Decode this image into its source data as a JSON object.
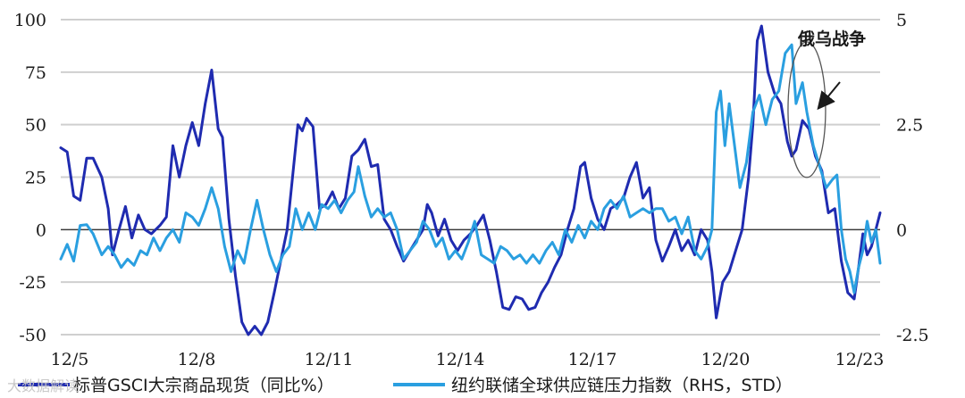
{
  "chart_data": {
    "type": "line",
    "title": "",
    "xlabel": "",
    "ylabel": "",
    "x_ticks": [
      "12/5",
      "12/8",
      "12/11",
      "12/14",
      "12/17",
      "12/20",
      "12/23"
    ],
    "x_range": [
      2005.0,
      2023.7
    ],
    "y_left": {
      "range": [
        -50,
        100
      ],
      "ticks": [
        100,
        75,
        50,
        25,
        0,
        -25,
        -50
      ]
    },
    "y_right": {
      "range": [
        -2.5,
        5
      ],
      "ticks": [
        "5",
        "2.5",
        "0",
        "-2.5"
      ]
    },
    "grid": true,
    "legend_position": "bottom",
    "series": [
      {
        "name": "标普GSCI大宗商品现货（同比%）",
        "axis": "left",
        "color": "#1f2bb0",
        "points": [
          [
            2005.0,
            39
          ],
          [
            2005.15,
            37
          ],
          [
            2005.3,
            16
          ],
          [
            2005.45,
            14
          ],
          [
            2005.6,
            34
          ],
          [
            2005.75,
            34
          ],
          [
            2005.95,
            25
          ],
          [
            2006.1,
            10
          ],
          [
            2006.2,
            -12
          ],
          [
            2006.35,
            0
          ],
          [
            2006.5,
            11
          ],
          [
            2006.65,
            -4
          ],
          [
            2006.8,
            7
          ],
          [
            2006.95,
            0
          ],
          [
            2007.1,
            -2
          ],
          [
            2007.3,
            2
          ],
          [
            2007.45,
            6
          ],
          [
            2007.6,
            40
          ],
          [
            2007.75,
            25
          ],
          [
            2007.9,
            40
          ],
          [
            2008.05,
            51
          ],
          [
            2008.2,
            40
          ],
          [
            2008.35,
            60
          ],
          [
            2008.5,
            76
          ],
          [
            2008.65,
            48
          ],
          [
            2008.75,
            44
          ],
          [
            2008.9,
            5
          ],
          [
            2009.05,
            -22
          ],
          [
            2009.2,
            -44
          ],
          [
            2009.35,
            -50
          ],
          [
            2009.5,
            -46
          ],
          [
            2009.65,
            -50
          ],
          [
            2009.8,
            -44
          ],
          [
            2009.95,
            -30
          ],
          [
            2010.1,
            -15
          ],
          [
            2010.25,
            0
          ],
          [
            2010.4,
            30
          ],
          [
            2010.5,
            50
          ],
          [
            2010.6,
            47
          ],
          [
            2010.7,
            53
          ],
          [
            2010.85,
            49
          ],
          [
            2011.0,
            10
          ],
          [
            2011.15,
            12
          ],
          [
            2011.3,
            18
          ],
          [
            2011.45,
            10
          ],
          [
            2011.6,
            15
          ],
          [
            2011.75,
            35
          ],
          [
            2011.9,
            38
          ],
          [
            2012.05,
            43
          ],
          [
            2012.2,
            30
          ],
          [
            2012.35,
            31
          ],
          [
            2012.5,
            5
          ],
          [
            2012.65,
            0
          ],
          [
            2012.8,
            -8
          ],
          [
            2012.95,
            -15
          ],
          [
            2013.1,
            -10
          ],
          [
            2013.25,
            -5
          ],
          [
            2013.4,
            0
          ],
          [
            2013.5,
            12
          ],
          [
            2013.6,
            8
          ],
          [
            2013.75,
            -3
          ],
          [
            2013.9,
            5
          ],
          [
            2014.05,
            -5
          ],
          [
            2014.2,
            -10
          ],
          [
            2014.35,
            -5
          ],
          [
            2014.5,
            -2
          ],
          [
            2014.65,
            2
          ],
          [
            2014.8,
            7
          ],
          [
            2014.95,
            -5
          ],
          [
            2015.1,
            -20
          ],
          [
            2015.25,
            -37
          ],
          [
            2015.4,
            -38
          ],
          [
            2015.55,
            -32
          ],
          [
            2015.7,
            -33
          ],
          [
            2015.85,
            -38
          ],
          [
            2016.0,
            -37
          ],
          [
            2016.15,
            -30
          ],
          [
            2016.3,
            -25
          ],
          [
            2016.45,
            -18
          ],
          [
            2016.6,
            -12
          ],
          [
            2016.75,
            0
          ],
          [
            2016.9,
            10
          ],
          [
            2017.05,
            30
          ],
          [
            2017.15,
            32
          ],
          [
            2017.3,
            15
          ],
          [
            2017.45,
            5
          ],
          [
            2017.6,
            0
          ],
          [
            2017.75,
            10
          ],
          [
            2017.9,
            12
          ],
          [
            2018.05,
            15
          ],
          [
            2018.2,
            25
          ],
          [
            2018.35,
            32
          ],
          [
            2018.5,
            15
          ],
          [
            2018.65,
            20
          ],
          [
            2018.8,
            -5
          ],
          [
            2018.95,
            -15
          ],
          [
            2019.1,
            -8
          ],
          [
            2019.25,
            0
          ],
          [
            2019.4,
            -10
          ],
          [
            2019.55,
            -5
          ],
          [
            2019.7,
            -12
          ],
          [
            2019.85,
            0
          ],
          [
            2020.0,
            -5
          ],
          [
            2020.1,
            -20
          ],
          [
            2020.2,
            -42
          ],
          [
            2020.35,
            -25
          ],
          [
            2020.5,
            -20
          ],
          [
            2020.65,
            -10
          ],
          [
            2020.8,
            0
          ],
          [
            2020.95,
            25
          ],
          [
            2021.05,
            50
          ],
          [
            2021.15,
            90
          ],
          [
            2021.25,
            97
          ],
          [
            2021.4,
            75
          ],
          [
            2021.55,
            65
          ],
          [
            2021.7,
            60
          ],
          [
            2021.85,
            42
          ],
          [
            2021.95,
            35
          ],
          [
            2022.05,
            38
          ],
          [
            2022.2,
            52
          ],
          [
            2022.35,
            48
          ],
          [
            2022.5,
            35
          ],
          [
            2022.65,
            28
          ],
          [
            2022.8,
            8
          ],
          [
            2022.95,
            10
          ],
          [
            2023.1,
            -15
          ],
          [
            2023.25,
            -30
          ],
          [
            2023.4,
            -33
          ],
          [
            2023.5,
            -18
          ],
          [
            2023.6,
            -2
          ],
          [
            2023.7,
            -12
          ],
          [
            2023.8,
            -8
          ],
          [
            2023.9,
            0
          ],
          [
            2024.0,
            8
          ]
        ]
      },
      {
        "name": "纽约联储全球供应链压力指数（RHS，STD）",
        "axis": "right",
        "color": "#2a9fe0",
        "points": [
          [
            2005.0,
            -0.7
          ],
          [
            2005.15,
            -0.35
          ],
          [
            2005.3,
            -0.75
          ],
          [
            2005.45,
            0.1
          ],
          [
            2005.6,
            0.12
          ],
          [
            2005.75,
            -0.1
          ],
          [
            2005.95,
            -0.6
          ],
          [
            2006.1,
            -0.4
          ],
          [
            2006.25,
            -0.6
          ],
          [
            2006.4,
            -0.9
          ],
          [
            2006.55,
            -0.7
          ],
          [
            2006.7,
            -0.85
          ],
          [
            2006.85,
            -0.5
          ],
          [
            2007.0,
            -0.6
          ],
          [
            2007.15,
            -0.2
          ],
          [
            2007.3,
            -0.5
          ],
          [
            2007.45,
            -0.2
          ],
          [
            2007.6,
            0.0
          ],
          [
            2007.75,
            -0.3
          ],
          [
            2007.9,
            0.4
          ],
          [
            2008.05,
            0.3
          ],
          [
            2008.2,
            0.1
          ],
          [
            2008.35,
            0.5
          ],
          [
            2008.5,
            1.0
          ],
          [
            2008.65,
            0.5
          ],
          [
            2008.8,
            -0.4
          ],
          [
            2008.95,
            -1.0
          ],
          [
            2009.1,
            -0.5
          ],
          [
            2009.25,
            -0.8
          ],
          [
            2009.4,
            0.0
          ],
          [
            2009.55,
            0.7
          ],
          [
            2009.7,
            0.0
          ],
          [
            2009.85,
            -0.6
          ],
          [
            2010.0,
            -1.0
          ],
          [
            2010.15,
            -0.6
          ],
          [
            2010.3,
            -0.4
          ],
          [
            2010.45,
            0.5
          ],
          [
            2010.6,
            0.0
          ],
          [
            2010.75,
            0.4
          ],
          [
            2010.9,
            0.0
          ],
          [
            2011.05,
            0.6
          ],
          [
            2011.2,
            0.5
          ],
          [
            2011.35,
            0.7
          ],
          [
            2011.5,
            0.4
          ],
          [
            2011.65,
            0.7
          ],
          [
            2011.8,
            0.9
          ],
          [
            2011.9,
            1.5
          ],
          [
            2012.05,
            0.8
          ],
          [
            2012.2,
            0.3
          ],
          [
            2012.35,
            0.5
          ],
          [
            2012.5,
            0.3
          ],
          [
            2012.65,
            0.4
          ],
          [
            2012.8,
            0.0
          ],
          [
            2012.95,
            -0.7
          ],
          [
            2013.1,
            -0.5
          ],
          [
            2013.25,
            -0.3
          ],
          [
            2013.4,
            0.2
          ],
          [
            2013.55,
            0.0
          ],
          [
            2013.7,
            -0.4
          ],
          [
            2013.85,
            -0.2
          ],
          [
            2014.0,
            -0.7
          ],
          [
            2014.15,
            -0.5
          ],
          [
            2014.3,
            -0.7
          ],
          [
            2014.45,
            -0.3
          ],
          [
            2014.6,
            0.2
          ],
          [
            2014.75,
            -0.6
          ],
          [
            2014.9,
            -0.7
          ],
          [
            2015.05,
            -0.8
          ],
          [
            2015.2,
            -0.4
          ],
          [
            2015.35,
            -0.5
          ],
          [
            2015.5,
            -0.7
          ],
          [
            2015.65,
            -0.6
          ],
          [
            2015.8,
            -0.8
          ],
          [
            2015.95,
            -0.6
          ],
          [
            2016.1,
            -0.8
          ],
          [
            2016.25,
            -0.5
          ],
          [
            2016.4,
            -0.3
          ],
          [
            2016.55,
            -0.6
          ],
          [
            2016.7,
            0.0
          ],
          [
            2016.85,
            -0.3
          ],
          [
            2017.0,
            0.1
          ],
          [
            2017.15,
            -0.2
          ],
          [
            2017.3,
            0.2
          ],
          [
            2017.45,
            0.0
          ],
          [
            2017.6,
            0.5
          ],
          [
            2017.75,
            0.7
          ],
          [
            2017.9,
            0.5
          ],
          [
            2018.05,
            0.8
          ],
          [
            2018.2,
            0.3
          ],
          [
            2018.35,
            0.4
          ],
          [
            2018.5,
            0.5
          ],
          [
            2018.65,
            0.4
          ],
          [
            2018.8,
            0.5
          ],
          [
            2018.95,
            0.5
          ],
          [
            2019.1,
            0.2
          ],
          [
            2019.25,
            0.3
          ],
          [
            2019.4,
            -0.1
          ],
          [
            2019.55,
            0.3
          ],
          [
            2019.7,
            -0.5
          ],
          [
            2019.85,
            -0.7
          ],
          [
            2020.0,
            -0.4
          ],
          [
            2020.1,
            0.0
          ],
          [
            2020.2,
            2.8
          ],
          [
            2020.3,
            3.3
          ],
          [
            2020.4,
            2.0
          ],
          [
            2020.5,
            3.0
          ],
          [
            2020.6,
            2.2
          ],
          [
            2020.75,
            1.0
          ],
          [
            2020.9,
            1.6
          ],
          [
            2021.05,
            2.8
          ],
          [
            2021.2,
            3.2
          ],
          [
            2021.35,
            2.5
          ],
          [
            2021.5,
            3.1
          ],
          [
            2021.65,
            3.3
          ],
          [
            2021.8,
            4.2
          ],
          [
            2021.95,
            4.4
          ],
          [
            2022.05,
            3.0
          ],
          [
            2022.2,
            3.5
          ],
          [
            2022.3,
            2.8
          ],
          [
            2022.45,
            2.0
          ],
          [
            2022.6,
            1.5
          ],
          [
            2022.75,
            1.0
          ],
          [
            2022.9,
            1.2
          ],
          [
            2023.0,
            1.3
          ],
          [
            2023.1,
            0.0
          ],
          [
            2023.2,
            -0.7
          ],
          [
            2023.3,
            -1.0
          ],
          [
            2023.4,
            -1.5
          ],
          [
            2023.5,
            -0.9
          ],
          [
            2023.6,
            -0.5
          ],
          [
            2023.7,
            0.2
          ],
          [
            2023.8,
            -0.3
          ],
          [
            2023.9,
            0.0
          ],
          [
            2024.0,
            -0.8
          ]
        ]
      }
    ],
    "annotations": [
      {
        "text": "俄乌战争",
        "target": [
          2022.3,
          55
        ]
      }
    ]
  },
  "watermark": "大数据解读"
}
